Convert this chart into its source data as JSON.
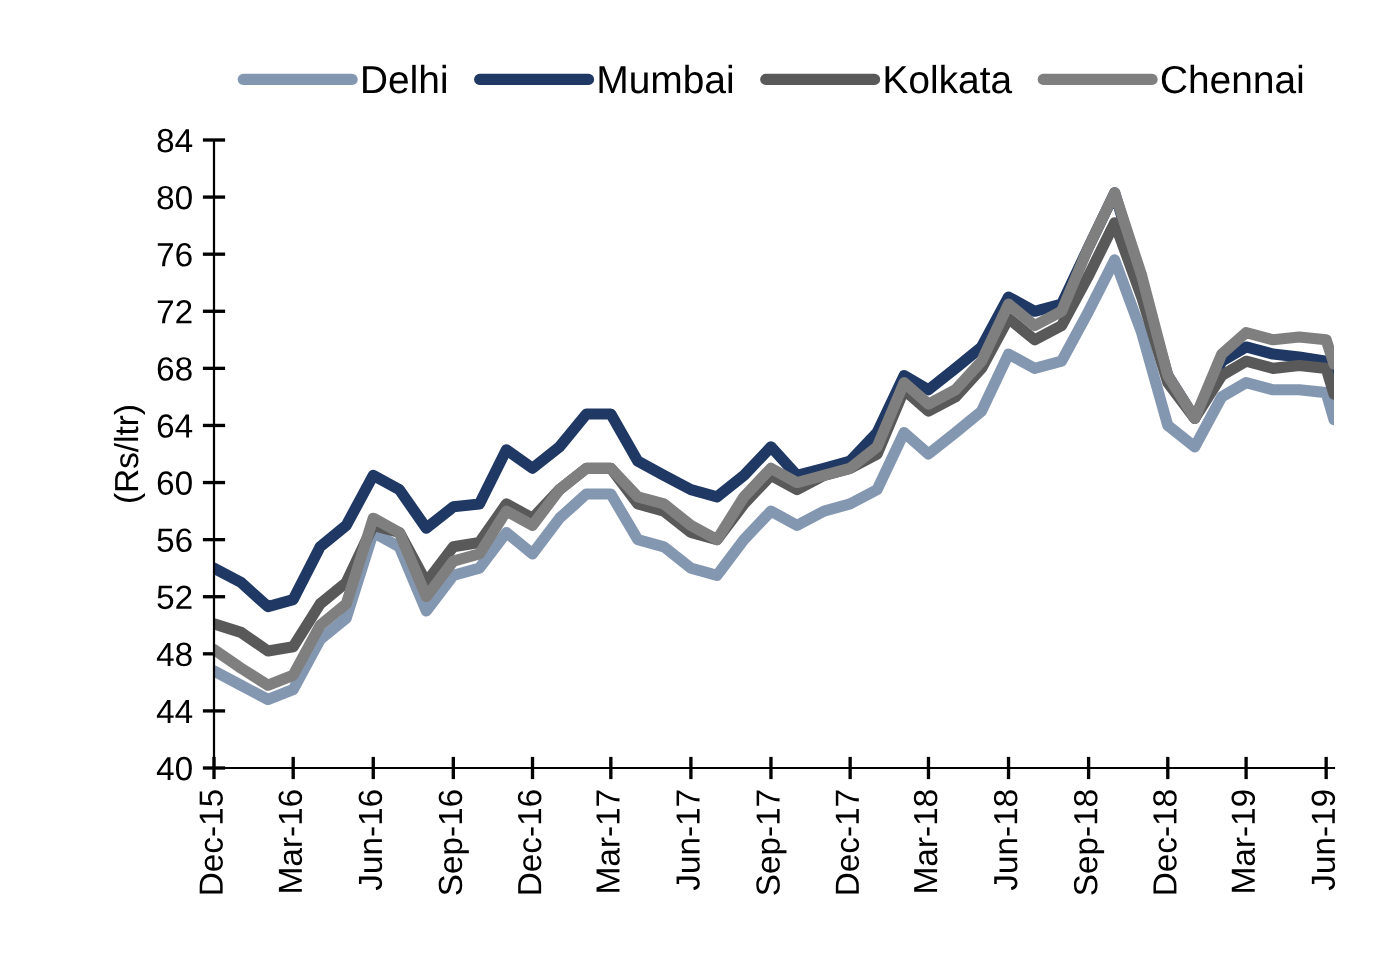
{
  "chart_data": {
    "type": "line",
    "ylabel": "(Rs/ltr)",
    "x": [
      "2015-12-01",
      "2016-01-01",
      "2016-02-01",
      "2016-03-01",
      "2016-04-01",
      "2016-05-01",
      "2016-06-01",
      "2016-07-01",
      "2016-08-01",
      "2016-09-01",
      "2016-10-01",
      "2016-11-01",
      "2016-12-01",
      "2017-01-01",
      "2017-02-01",
      "2017-03-01",
      "2017-04-01",
      "2017-05-01",
      "2017-06-01",
      "2017-07-01",
      "2017-08-01",
      "2017-09-01",
      "2017-10-01",
      "2017-11-01",
      "2017-12-01",
      "2018-01-01",
      "2018-02-01",
      "2018-03-01",
      "2018-04-01",
      "2018-05-01",
      "2018-06-01",
      "2018-07-01",
      "2018-08-01",
      "2018-09-01",
      "2018-10-01",
      "2018-11-01",
      "2018-12-01",
      "2019-01-01",
      "2019-02-01",
      "2019-03-01",
      "2019-04-01",
      "2019-05-01",
      "2019-06-01",
      "2019-06-10"
    ],
    "series": [
      {
        "name": "Delhi",
        "color": "#8497b0",
        "values": [
          46.8,
          45.8,
          44.8,
          45.5,
          49.0,
          50.5,
          56.5,
          55.5,
          51.0,
          53.5,
          54.0,
          56.5,
          55.0,
          57.5,
          59.2,
          59.2,
          56.0,
          55.5,
          54.0,
          53.5,
          56.0,
          58.0,
          57.0,
          58.0,
          58.5,
          59.5,
          63.5,
          62.0,
          63.5,
          65.0,
          69.0,
          68.0,
          68.5,
          72.0,
          75.6,
          70.5,
          64.0,
          62.5,
          66.0,
          67.0,
          66.5,
          66.5,
          66.3,
          64.4
        ]
      },
      {
        "name": "Mumbai",
        "color": "#1f3864",
        "values": [
          54.0,
          53.0,
          51.3,
          51.8,
          55.5,
          57.0,
          60.5,
          59.5,
          56.8,
          58.3,
          58.5,
          62.3,
          61.0,
          62.5,
          64.8,
          64.8,
          61.5,
          60.5,
          59.5,
          59.0,
          60.5,
          62.5,
          60.5,
          61.0,
          61.5,
          63.5,
          67.5,
          66.5,
          68.0,
          69.5,
          73.0,
          72.0,
          72.5,
          76.5,
          80.3,
          74.0,
          67.5,
          64.5,
          68.5,
          69.5,
          69.0,
          68.8,
          68.5,
          67.3
        ]
      },
      {
        "name": "Kolkata",
        "color": "#595959",
        "values": [
          50.1,
          49.5,
          48.2,
          48.5,
          51.5,
          53.0,
          57.0,
          56.5,
          53.0,
          55.5,
          55.8,
          58.5,
          57.5,
          59.5,
          61.0,
          61.0,
          58.5,
          58.0,
          56.5,
          56.0,
          58.5,
          60.5,
          59.5,
          60.5,
          61.0,
          62.0,
          66.5,
          65.0,
          66.0,
          68.0,
          71.5,
          70.0,
          71.0,
          74.5,
          78.2,
          73.0,
          67.0,
          64.5,
          67.5,
          68.5,
          68.0,
          68.2,
          68.0,
          66.2
        ]
      },
      {
        "name": "Chennai",
        "color": "#7f7f7f",
        "values": [
          48.3,
          47.0,
          45.8,
          46.5,
          50.0,
          51.5,
          57.5,
          56.5,
          52.0,
          54.5,
          55.0,
          58.0,
          57.0,
          59.5,
          61.0,
          61.0,
          59.0,
          58.5,
          57.0,
          56.0,
          59.0,
          61.0,
          60.0,
          60.5,
          61.0,
          62.5,
          67.0,
          65.5,
          66.5,
          68.5,
          72.5,
          71.0,
          72.0,
          76.5,
          80.3,
          74.5,
          67.5,
          64.5,
          69.0,
          70.5,
          70.0,
          70.2,
          70.0,
          68.3
        ]
      }
    ],
    "xlim": [
      "2015-12-01",
      "2019-06-10"
    ],
    "xticks": [
      {
        "value": "2015-12-01",
        "label": "Dec-15"
      },
      {
        "value": "2016-03-01",
        "label": "Mar-16"
      },
      {
        "value": "2016-06-01",
        "label": "Jun-16"
      },
      {
        "value": "2016-09-01",
        "label": "Sep-16"
      },
      {
        "value": "2016-12-01",
        "label": "Dec-16"
      },
      {
        "value": "2017-03-01",
        "label": "Mar-17"
      },
      {
        "value": "2017-06-01",
        "label": "Jun-17"
      },
      {
        "value": "2017-09-01",
        "label": "Sep-17"
      },
      {
        "value": "2017-12-01",
        "label": "Dec-17"
      },
      {
        "value": "2018-03-01",
        "label": "Mar-18"
      },
      {
        "value": "2018-06-01",
        "label": "Jun-18"
      },
      {
        "value": "2018-09-01",
        "label": "Sep-18"
      },
      {
        "value": "2018-12-01",
        "label": "Dec-18"
      },
      {
        "value": "2019-03-01",
        "label": "Mar-19"
      },
      {
        "value": "2019-06-01",
        "label": "Jun-19"
      }
    ],
    "ylim": [
      40,
      84
    ],
    "yticks": [
      40,
      44,
      48,
      52,
      56,
      60,
      64,
      68,
      72,
      76,
      80,
      84
    ],
    "grid": false,
    "legend": "top",
    "marker": "none",
    "line_style": "solid"
  }
}
